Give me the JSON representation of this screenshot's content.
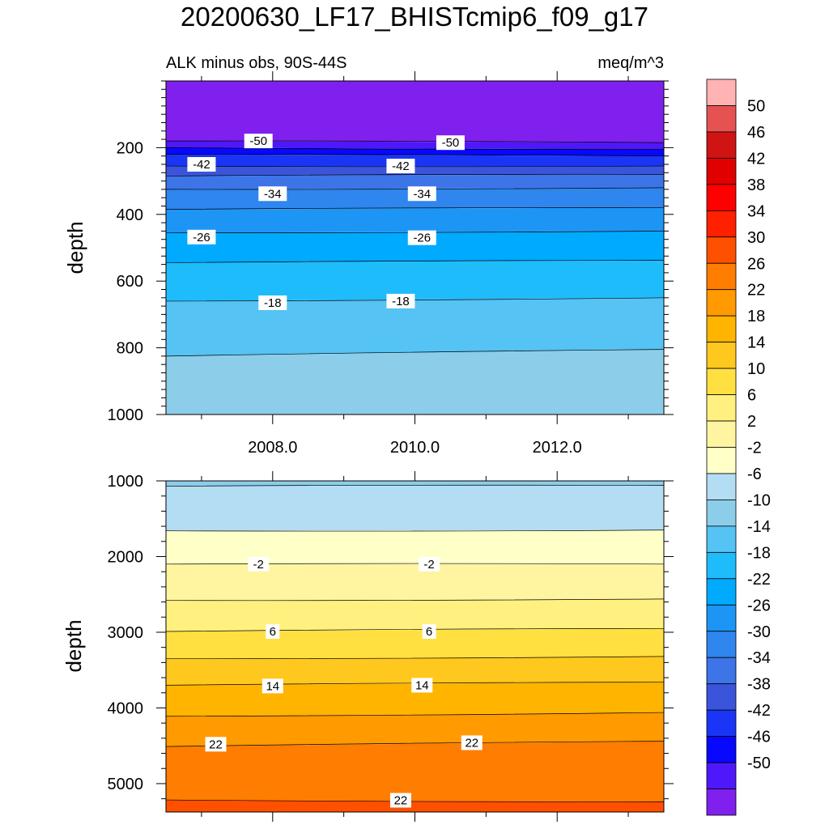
{
  "title": "20200630_LF17_BHISTcmip6_f09_g17",
  "chart_data": [
    {
      "type": "heatmap",
      "subtitle_left": "ALK minus obs, 90S-44S",
      "subtitle_right": "meq/m^3",
      "ylabel": "depth",
      "xlim": [
        2006.5,
        2013.5
      ],
      "ylim": [
        1000,
        0
      ],
      "y_reversed": true,
      "y_ticks": [
        "200",
        "400",
        "600",
        "800",
        "1000"
      ],
      "x_ticks": [
        "2008.0",
        "2010.0",
        "2012.0"
      ],
      "level_boundaries": [
        {
          "level": -54,
          "depth_2006_5": 180,
          "depth_2013_5": 185
        },
        {
          "level": -50,
          "depth_2006_5": 200,
          "depth_2013_5": 205
        },
        {
          "level": -46,
          "depth_2006_5": 220,
          "depth_2013_5": 225
        },
        {
          "level": -42,
          "depth_2006_5": 255,
          "depth_2013_5": 255
        },
        {
          "level": -38,
          "depth_2006_5": 285,
          "depth_2013_5": 280
        },
        {
          "level": -34,
          "depth_2006_5": 325,
          "depth_2013_5": 320
        },
        {
          "level": -30,
          "depth_2006_5": 385,
          "depth_2013_5": 380
        },
        {
          "level": -26,
          "depth_2006_5": 455,
          "depth_2013_5": 450
        },
        {
          "level": -22,
          "depth_2006_5": 545,
          "depth_2013_5": 538
        },
        {
          "level": -18,
          "depth_2006_5": 660,
          "depth_2013_5": 650
        },
        {
          "level": -14,
          "depth_2006_5": 825,
          "depth_2013_5": 805
        }
      ],
      "contour_labels": [
        {
          "text": "-50",
          "x": 2007.8,
          "depth": 180
        },
        {
          "text": "-50",
          "x": 2010.5,
          "depth": 185
        },
        {
          "text": "-42",
          "x": 2007.0,
          "depth": 250
        },
        {
          "text": "-42",
          "x": 2009.8,
          "depth": 255
        },
        {
          "text": "-34",
          "x": 2008.0,
          "depth": 338
        },
        {
          "text": "-34",
          "x": 2010.1,
          "depth": 338
        },
        {
          "text": "-26",
          "x": 2007.0,
          "depth": 468
        },
        {
          "text": "-26",
          "x": 2010.1,
          "depth": 470
        },
        {
          "text": "-18",
          "x": 2008.0,
          "depth": 665
        },
        {
          "text": "-18",
          "x": 2009.8,
          "depth": 660
        }
      ]
    },
    {
      "type": "heatmap",
      "ylabel": "depth",
      "xlim": [
        2006.5,
        2013.5
      ],
      "ylim": [
        5375,
        1000
      ],
      "y_reversed": true,
      "y_ticks": [
        "1000",
        "2000",
        "3000",
        "4000",
        "5000"
      ],
      "level_boundaries": [
        {
          "level": -10,
          "depth_2006_5": 1070,
          "depth_2013_5": 1060
        },
        {
          "level": -6,
          "depth_2006_5": 1660,
          "depth_2013_5": 1650
        },
        {
          "level": -2,
          "depth_2006_5": 2100,
          "depth_2013_5": 2100
        },
        {
          "level": 2,
          "depth_2006_5": 2580,
          "depth_2013_5": 2560
        },
        {
          "level": 6,
          "depth_2006_5": 2990,
          "depth_2013_5": 2950
        },
        {
          "level": 10,
          "depth_2006_5": 3350,
          "depth_2013_5": 3320
        },
        {
          "level": 14,
          "depth_2006_5": 3700,
          "depth_2013_5": 3660
        },
        {
          "level": 18,
          "depth_2006_5": 4110,
          "depth_2013_5": 4060
        },
        {
          "level": 22,
          "depth_2006_5": 4510,
          "depth_2013_5": 4440
        },
        {
          "level": 26,
          "depth_2006_5": 5215,
          "depth_2013_5": 5240
        }
      ],
      "contour_labels": [
        {
          "text": "-2",
          "x": 2007.8,
          "depth": 2100
        },
        {
          "text": "-2",
          "x": 2010.2,
          "depth": 2100
        },
        {
          "text": "6",
          "x": 2008.0,
          "depth": 2990
        },
        {
          "text": "6",
          "x": 2010.2,
          "depth": 2990
        },
        {
          "text": "14",
          "x": 2008.0,
          "depth": 3710
        },
        {
          "text": "14",
          "x": 2010.1,
          "depth": 3700
        },
        {
          "text": "22",
          "x": 2007.2,
          "depth": 4480
        },
        {
          "text": "22",
          "x": 2010.8,
          "depth": 4460
        },
        {
          "text": "22",
          "x": 2009.8,
          "depth": 5220
        }
      ]
    }
  ],
  "colorbar": {
    "labels": [
      "50",
      "46",
      "42",
      "38",
      "34",
      "30",
      "26",
      "22",
      "18",
      "14",
      "10",
      "6",
      "2",
      "-2",
      "-6",
      "-10",
      "-14",
      "-18",
      "-22",
      "-26",
      "-30",
      "-34",
      "-38",
      "-42",
      "-46",
      "-50"
    ],
    "colors": [
      "#ffb3b3",
      "#e65252",
      "#d01414",
      "#e00000",
      "#ff0000",
      "#ff2000",
      "#ff5000",
      "#ff7d00",
      "#ff9a00",
      "#ffb400",
      "#ffc81e",
      "#ffe040",
      "#fff080",
      "#fff5a0",
      "#ffffc8",
      "#b3ddf2",
      "#8ccde9",
      "#55c3f4",
      "#1fbcfc",
      "#00aaff",
      "#1d95f5",
      "#2e86ee",
      "#3d74e8",
      "#3a55dc",
      "#1a35f5",
      "#0808ff",
      "#4e18fa",
      "#8020ee"
    ]
  }
}
